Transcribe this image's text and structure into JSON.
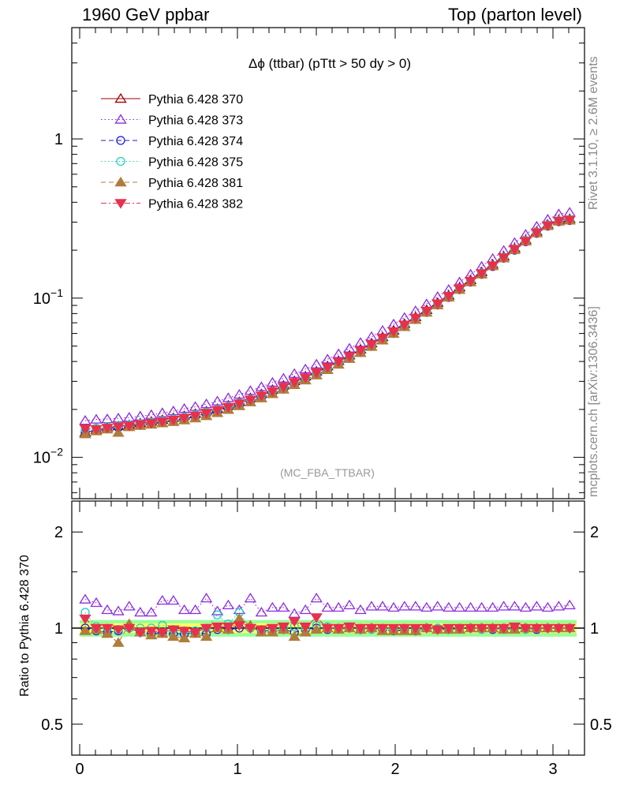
{
  "header": {
    "left": "1960 GeV ppbar",
    "right": "Top (parton level)"
  },
  "side_labels": {
    "rivet": "Rivet 3.1.10, ≥ 2.6M events",
    "mcplots": "mcplots.cern.ch [arXiv:1306.3436]"
  },
  "chart_data": [
    {
      "type": "line",
      "panel": "main",
      "title": "Δϕ (ttbar) (pTtt > 50 dy > 0)",
      "annotation": "(MC_FBA_TTBAR)",
      "xlabel": "",
      "ylabel": "",
      "xlim": [
        -0.05,
        3.2
      ],
      "ylim": [
        0.0055,
        5
      ],
      "yscale": "log",
      "ytick_labels": [
        "10^-2",
        "10^-1",
        "1"
      ],
      "grid": false,
      "legend_position": "top-left",
      "x": [
        0.035,
        0.105,
        0.175,
        0.245,
        0.314,
        0.384,
        0.454,
        0.524,
        0.594,
        0.663,
        0.733,
        0.803,
        0.873,
        0.942,
        1.012,
        1.082,
        1.152,
        1.222,
        1.292,
        1.361,
        1.431,
        1.501,
        1.571,
        1.641,
        1.71,
        1.78,
        1.85,
        1.92,
        1.99,
        2.059,
        2.129,
        2.199,
        2.269,
        2.339,
        2.408,
        2.478,
        2.548,
        2.618,
        2.688,
        2.757,
        2.827,
        2.897,
        2.967,
        3.037,
        3.106
      ],
      "series": [
        {
          "name": "Pythia 6.428 370",
          "color": "#a00000",
          "marker": "triangle-open",
          "dash": "solid",
          "values": [
            0.0143,
            0.0149,
            0.0154,
            0.0157,
            0.016,
            0.0164,
            0.0168,
            0.0172,
            0.0177,
            0.0182,
            0.0188,
            0.0195,
            0.0202,
            0.0212,
            0.0223,
            0.0236,
            0.025,
            0.0266,
            0.0283,
            0.0302,
            0.0323,
            0.0347,
            0.0374,
            0.0404,
            0.0438,
            0.0477,
            0.0521,
            0.057,
            0.0627,
            0.069,
            0.0762,
            0.0844,
            0.0937,
            0.104,
            0.117,
            0.13,
            0.146,
            0.163,
            0.183,
            0.206,
            0.232,
            0.262,
            0.29,
            0.31,
            0.315
          ]
        },
        {
          "name": "Pythia 6.428 373",
          "color": "#8b2be2",
          "marker": "triangle-open",
          "dash": "dotted",
          "values": [
            0.017,
            0.0173,
            0.0174,
            0.0176,
            0.0178,
            0.0181,
            0.0185,
            0.019,
            0.0195,
            0.0202,
            0.0208,
            0.0216,
            0.0225,
            0.0236,
            0.0248,
            0.0262,
            0.0277,
            0.0295,
            0.0313,
            0.0335,
            0.0358,
            0.0384,
            0.0413,
            0.0446,
            0.0483,
            0.0525,
            0.0572,
            0.0625,
            0.0686,
            0.0754,
            0.0831,
            0.0918,
            0.102,
            0.113,
            0.126,
            0.141,
            0.158,
            0.177,
            0.199,
            0.223,
            0.251,
            0.282,
            0.312,
            0.337,
            0.345
          ]
        },
        {
          "name": "Pythia 6.428 374",
          "color": "#1a1ad9",
          "marker": "circle-open",
          "dash": "dashed",
          "values": [
            0.0143,
            0.0147,
            0.0151,
            0.0154,
            0.0157,
            0.016,
            0.0163,
            0.0166,
            0.017,
            0.0174,
            0.018,
            0.0186,
            0.0193,
            0.0202,
            0.0212,
            0.0224,
            0.0237,
            0.0252,
            0.0268,
            0.0287,
            0.0307,
            0.033,
            0.0356,
            0.0385,
            0.0418,
            0.0455,
            0.0497,
            0.0545,
            0.06,
            0.0662,
            0.0733,
            0.0813,
            0.0905,
            0.101,
            0.113,
            0.126,
            0.141,
            0.158,
            0.178,
            0.2,
            0.226,
            0.255,
            0.283,
            0.302,
            0.307
          ]
        },
        {
          "name": "Pythia 6.428 375",
          "color": "#20d0c0",
          "marker": "circle-open",
          "dash": "dotted",
          "values": [
            0.015,
            0.0153,
            0.0156,
            0.0158,
            0.016,
            0.0163,
            0.0166,
            0.017,
            0.0174,
            0.0179,
            0.0185,
            0.0192,
            0.02,
            0.0209,
            0.0219,
            0.0231,
            0.0244,
            0.0259,
            0.0276,
            0.0294,
            0.0315,
            0.0338,
            0.0364,
            0.0393,
            0.0426,
            0.0464,
            0.0507,
            0.0556,
            0.0611,
            0.0674,
            0.0746,
            0.0828,
            0.0921,
            0.103,
            0.115,
            0.128,
            0.144,
            0.161,
            0.181,
            0.204,
            0.23,
            0.26,
            0.288,
            0.307,
            0.312
          ]
        },
        {
          "name": "Pythia 6.428 381",
          "color": "#b07d3c",
          "marker": "triangle-filled",
          "dash": "dashed",
          "values": [
            0.014,
            0.0146,
            0.015,
            0.0143,
            0.0155,
            0.0158,
            0.0161,
            0.0164,
            0.0167,
            0.0171,
            0.0176,
            0.0182,
            0.019,
            0.0199,
            0.021,
            0.0222,
            0.0235,
            0.025,
            0.0267,
            0.0285,
            0.0305,
            0.0328,
            0.0354,
            0.0383,
            0.0416,
            0.0453,
            0.0495,
            0.0543,
            0.0598,
            0.066,
            0.0731,
            0.0812,
            0.0904,
            0.101,
            0.113,
            0.126,
            0.141,
            0.159,
            0.178,
            0.201,
            0.227,
            0.256,
            0.284,
            0.303,
            0.308
          ]
        },
        {
          "name": "Pythia 6.428 382",
          "color": "#e8304d",
          "marker": "triangle-down-filled",
          "dash": "dashdot",
          "values": [
            0.0152,
            0.015,
            0.0153,
            0.0156,
            0.0158,
            0.0161,
            0.0164,
            0.0168,
            0.0172,
            0.0177,
            0.0183,
            0.019,
            0.0198,
            0.0207,
            0.0218,
            0.023,
            0.0244,
            0.026,
            0.0277,
            0.0296,
            0.0317,
            0.0341,
            0.0368,
            0.0398,
            0.0431,
            0.0469,
            0.0512,
            0.0561,
            0.0617,
            0.068,
            0.0751,
            0.0832,
            0.0924,
            0.103,
            0.115,
            0.128,
            0.143,
            0.16,
            0.18,
            0.203,
            0.228,
            0.258,
            0.286,
            0.305,
            0.31
          ]
        }
      ]
    },
    {
      "type": "line",
      "panel": "ratio",
      "title": "",
      "xlabel": "",
      "ylabel": "Ratio to Pythia 6.428 370",
      "xlim": [
        -0.05,
        3.2
      ],
      "ylim": [
        0.4,
        2.5
      ],
      "yscale": "log",
      "ytick_labels": [
        "0.5",
        "1",
        "2"
      ],
      "xtick_labels": [
        "0",
        "1",
        "2",
        "3"
      ],
      "reference_band": {
        "inner_color": "#ffff66",
        "outer_color": "#99ff99",
        "inner_halfwidth": 0.035,
        "outer_halfwidth": 0.06
      },
      "x": [
        0.035,
        0.105,
        0.175,
        0.245,
        0.314,
        0.384,
        0.454,
        0.524,
        0.594,
        0.663,
        0.733,
        0.803,
        0.873,
        0.942,
        1.012,
        1.082,
        1.152,
        1.222,
        1.292,
        1.361,
        1.431,
        1.501,
        1.571,
        1.641,
        1.71,
        1.78,
        1.85,
        1.92,
        1.99,
        2.059,
        2.129,
        2.199,
        2.269,
        2.339,
        2.408,
        2.478,
        2.548,
        2.618,
        2.688,
        2.757,
        2.827,
        2.897,
        2.967,
        3.037,
        3.106
      ],
      "series": [
        {
          "name": "Pythia 6.428 373",
          "color": "#8b2be2",
          "marker": "triangle-open",
          "dash": "dotted",
          "values": [
            1.23,
            1.2,
            1.14,
            1.13,
            1.17,
            1.12,
            1.12,
            1.22,
            1.22,
            1.14,
            1.14,
            1.24,
            1.13,
            1.18,
            1.14,
            1.24,
            1.12,
            1.16,
            1.16,
            1.11,
            1.14,
            1.24,
            1.16,
            1.16,
            1.18,
            1.14,
            1.17,
            1.17,
            1.16,
            1.17,
            1.17,
            1.16,
            1.17,
            1.16,
            1.16,
            1.16,
            1.16,
            1.16,
            1.17,
            1.17,
            1.16,
            1.17,
            1.16,
            1.17,
            1.18
          ]
        },
        {
          "name": "Pythia 6.428 374",
          "color": "#1a1ad9",
          "marker": "circle-open",
          "dash": "dashed",
          "values": [
            1.0,
            0.98,
            0.97,
            0.98,
            1.0,
            0.97,
            0.96,
            0.97,
            0.96,
            0.96,
            0.97,
            0.96,
            0.99,
            0.99,
            1.0,
            1.0,
            0.98,
            0.98,
            0.99,
            0.97,
            0.99,
            1.0,
            0.99,
            1.0,
            1.0,
            0.99,
            1.0,
            0.99,
            0.98,
            0.99,
            0.98,
            1.0,
            0.99,
            0.99,
            1.0,
            1.0,
            1.0,
            0.99,
            1.0,
            1.0,
            1.0,
            0.99,
            1.0,
            1.0,
            1.0
          ]
        },
        {
          "name": "Pythia 6.428 375",
          "color": "#20d0c0",
          "marker": "circle-open",
          "dash": "dotted",
          "values": [
            1.12,
            1.01,
            1.0,
            0.99,
            1.0,
            1.0,
            1.0,
            1.02,
            0.99,
            0.98,
            0.98,
            1.0,
            1.1,
            1.03,
            1.12,
            1.0,
            0.99,
            0.98,
            1.0,
            1.01,
            1.0,
            1.02,
            1.01,
            1.0,
            1.01,
            1.0,
            0.99,
            1.0,
            0.99,
            1.0,
            0.99,
            1.0,
            1.0,
            0.99,
            1.0,
            1.0,
            0.99,
            1.0,
            0.99,
            1.0,
            0.99,
            1.0,
            1.0,
            1.0,
            1.0
          ]
        },
        {
          "name": "Pythia 6.428 381",
          "color": "#b07d3c",
          "marker": "triangle-filled",
          "dash": "dashed",
          "values": [
            0.98,
            0.99,
            0.96,
            0.9,
            1.03,
            0.97,
            0.95,
            0.96,
            0.94,
            0.93,
            0.96,
            0.94,
            1.0,
            0.99,
            1.07,
            1.02,
            0.97,
            0.97,
            0.99,
            0.94,
            0.97,
            0.99,
            1.0,
            0.99,
            1.0,
            0.99,
            1.0,
            0.98,
            0.98,
            0.98,
            0.98,
            1.0,
            0.99,
            0.99,
            0.99,
            1.0,
            1.0,
            1.0,
            0.99,
            0.99,
            1.0,
            1.0,
            1.0,
            1.0,
            1.0
          ]
        },
        {
          "name": "Pythia 6.428 382",
          "color": "#e8304d",
          "marker": "triangle-down-filled",
          "dash": "dashdot",
          "values": [
            1.07,
            1.0,
            1.0,
            0.99,
            1.0,
            0.97,
            0.98,
            0.97,
            0.99,
            0.98,
            0.97,
            1.0,
            1.01,
            1.01,
            1.02,
            1.0,
            0.99,
            1.0,
            1.01,
            1.05,
            1.01,
            1.08,
            1.0,
            1.0,
            1.01,
            1.0,
            1.0,
            1.0,
            1.0,
            1.0,
            1.0,
            1.0,
            0.99,
            1.0,
            1.0,
            1.0,
            1.0,
            1.0,
            1.0,
            1.01,
            1.0,
            1.0,
            1.0,
            1.0,
            1.0
          ]
        }
      ]
    }
  ]
}
